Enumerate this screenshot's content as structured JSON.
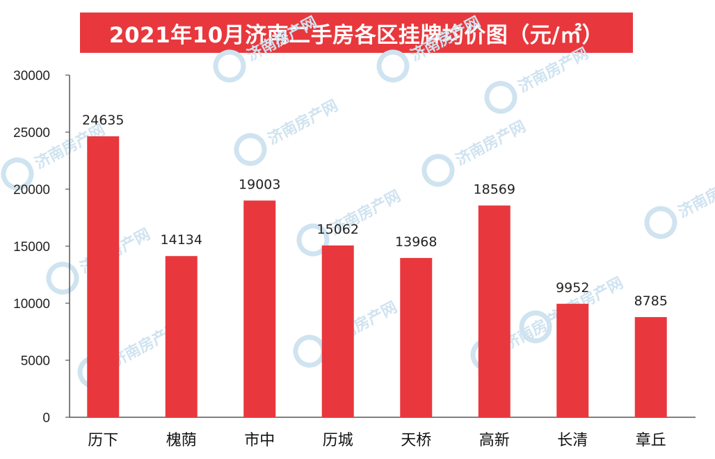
{
  "chart_data": {
    "type": "bar",
    "title": "2021年10月济南二手房各区挂牌均价图（元/㎡）",
    "categories": [
      "历下",
      "槐荫",
      "市中",
      "历城",
      "天桥",
      "高新",
      "长清",
      "章丘"
    ],
    "values": [
      24635,
      14134,
      19003,
      15062,
      13968,
      18569,
      9952,
      8785
    ],
    "data_labels": [
      "24635",
      "14134",
      "19003",
      "15062",
      "13968",
      "18569",
      "9952",
      "8785"
    ],
    "ylim": [
      0,
      30000
    ],
    "yticks": [
      0,
      5000,
      10000,
      15000,
      20000,
      25000,
      30000
    ],
    "ytick_labels": [
      "0",
      "5000",
      "10000",
      "15000",
      "20000",
      "25000",
      "30000"
    ],
    "xlabel": "",
    "ylabel": "",
    "grid": false,
    "legend": "none",
    "bar_color": "#e8383d"
  },
  "watermark": {
    "text": "济南房产网",
    "icon": "jinan-fangchan-logo-icon",
    "color": "#cfe3f0"
  }
}
